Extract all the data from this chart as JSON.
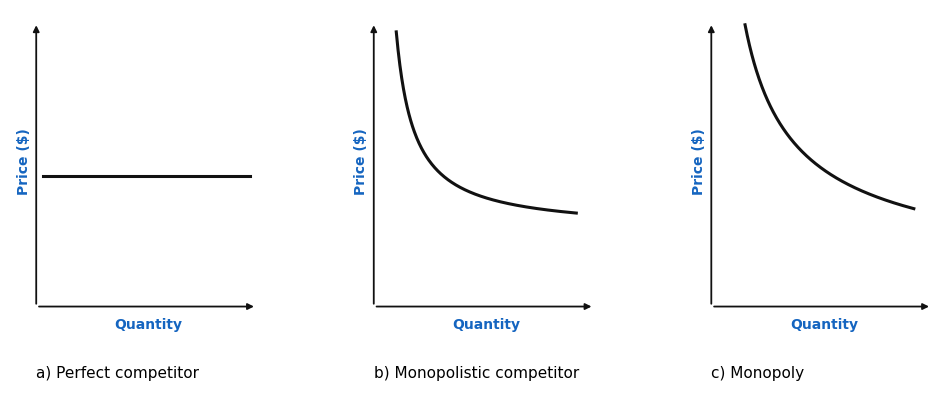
{
  "title_a": "a) Perfect competitor",
  "title_b": "b) Monopolistic competitor",
  "title_c": "c) Monopoly",
  "ylabel": "Price ($)",
  "xlabel": "Quantity",
  "label_color": "#1565C0",
  "line_color": "#111111",
  "axis_color": "#111111",
  "bg_color": "#ffffff",
  "line_width": 2.2,
  "axis_label_fontsize": 10,
  "subplot_label_fontsize": 11,
  "caption_fontsize": 11
}
